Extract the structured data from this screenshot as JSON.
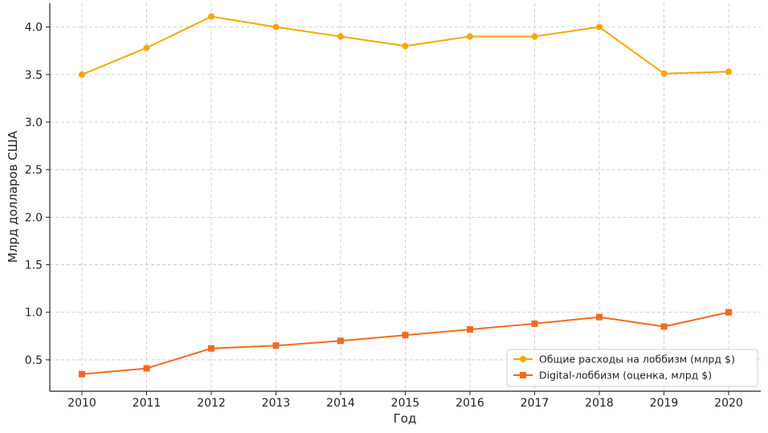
{
  "chart_data": {
    "type": "line",
    "title": "",
    "xlabel": "Год",
    "ylabel": "Млрд долларов США",
    "x": [
      2010,
      2011,
      2012,
      2013,
      2014,
      2015,
      2016,
      2017,
      2018,
      2019,
      2020
    ],
    "ylim": [
      0.17,
      4.25
    ],
    "yticks": [
      "0.5",
      "1.0",
      "1.5",
      "2.0",
      "2.5",
      "3.0",
      "3.5",
      "4.0"
    ],
    "grid": true,
    "legend_position": "bottom-right",
    "series": [
      {
        "name": "Общие расходы на лоббизм (млрд $)",
        "marker": "circle",
        "color": "#f5a800",
        "values": [
          3.5,
          3.78,
          4.11,
          4.0,
          3.9,
          3.8,
          3.9,
          3.9,
          4.0,
          3.51,
          3.53
        ]
      },
      {
        "name": "Digital-лоббизм (оценка, млрд $)",
        "marker": "square",
        "color": "#f26b1d",
        "values": [
          0.35,
          0.41,
          0.62,
          0.65,
          0.7,
          0.76,
          0.82,
          0.88,
          0.95,
          0.85,
          1.0
        ]
      }
    ]
  }
}
